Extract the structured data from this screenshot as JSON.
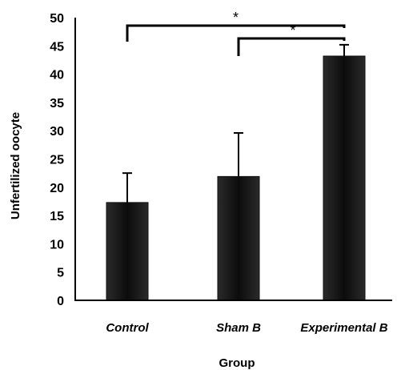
{
  "chart_data": {
    "type": "bar",
    "categories": [
      "Control",
      "Sham B",
      "Experimental B"
    ],
    "values": [
      17.3,
      21.9,
      43.2
    ],
    "error": [
      5.2,
      7.7,
      2.0
    ],
    "ylabel": "Unfertilized oocyte",
    "xlabel": "Group",
    "ylim": [
      0,
      50
    ],
    "yticks": [
      "0",
      "5",
      "10",
      "15",
      "20",
      "25",
      "30",
      "35",
      "40",
      "45",
      "50"
    ],
    "significance": [
      {
        "from": "Control",
        "to": "Experimental B",
        "label": "*"
      },
      {
        "from": "Sham B",
        "to": "Experimental B",
        "label": "*"
      }
    ],
    "bar_color": "#111111",
    "grid": false,
    "legend": "none"
  }
}
